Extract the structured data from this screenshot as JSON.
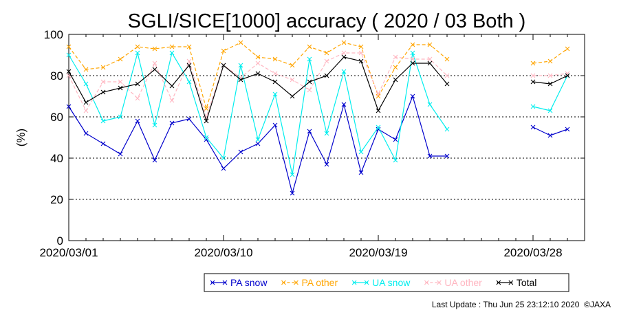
{
  "chart_data": {
    "type": "line",
    "title": "SGLI/SICE[1000] accuracy ( 2020 / 03 Both )",
    "ylabel": "(%)",
    "xlabel": "",
    "ylim": [
      0,
      100
    ],
    "yticks": [
      "0",
      "20",
      "40",
      "60",
      "80",
      "100"
    ],
    "xlim": [
      1,
      31
    ],
    "xticks": [
      {
        "day": 1,
        "label": "2020/03/01"
      },
      {
        "day": 10,
        "label": "2020/03/10"
      },
      {
        "day": 19,
        "label": "2020/03/19"
      },
      {
        "day": 28,
        "label": "2020/03/28"
      }
    ],
    "grid": "horizontal dotted at 20, 40, 60, 80",
    "legend_position": "bottom-right",
    "x": [
      1,
      2,
      3,
      4,
      5,
      6,
      7,
      8,
      9,
      10,
      11,
      12,
      13,
      14,
      15,
      16,
      17,
      18,
      19,
      20,
      21,
      22,
      23,
      24,
      25,
      26,
      27,
      28,
      29,
      30,
      31
    ],
    "series": [
      {
        "name": "PA snow",
        "color": "#0000cc",
        "dash": "solid",
        "values": [
          65,
          52,
          47,
          42,
          58,
          39,
          57,
          59,
          49,
          35,
          43,
          47,
          56,
          23,
          53,
          37,
          66,
          33,
          54,
          49,
          70,
          41,
          41,
          null,
          null,
          null,
          null,
          55,
          51,
          54,
          null
        ]
      },
      {
        "name": "PA other",
        "color": "#ffa500",
        "dash": "dashed",
        "values": [
          94,
          83,
          84,
          88,
          94,
          93,
          94,
          94,
          64,
          92,
          96,
          89,
          88,
          85,
          94,
          91,
          96,
          94,
          70,
          84,
          95,
          95,
          88,
          null,
          null,
          null,
          null,
          86,
          87,
          93,
          null
        ]
      },
      {
        "name": "UA snow",
        "color": "#00eeee",
        "dash": "solid",
        "values": [
          90,
          76,
          58,
          60,
          91,
          56,
          91,
          77,
          50,
          40,
          85,
          49,
          71,
          32,
          88,
          52,
          82,
          43,
          55,
          39,
          91,
          66,
          54,
          null,
          null,
          null,
          null,
          65,
          63,
          80,
          null
        ]
      },
      {
        "name": "UA other",
        "color": "#ffb6c1",
        "dash": "dashed",
        "values": [
          80,
          63,
          77,
          77,
          69,
          86,
          68,
          87,
          60,
          85,
          79,
          86,
          81,
          78,
          73,
          87,
          91,
          91,
          71,
          89,
          88,
          88,
          80,
          null,
          null,
          null,
          null,
          80,
          80,
          81,
          null
        ]
      },
      {
        "name": "Total",
        "color": "#000000",
        "dash": "solid",
        "values": [
          82,
          67,
          72,
          74,
          76,
          83,
          75,
          85,
          58,
          85,
          78,
          81,
          77,
          70,
          77,
          80,
          89,
          87,
          63,
          78,
          86,
          86,
          76,
          null,
          null,
          null,
          null,
          77,
          76,
          80,
          null
        ]
      }
    ]
  },
  "footer": {
    "last_update": "Last Update : Thu Jun 25 23:12:10 2020",
    "copyright": "©JAXA"
  }
}
